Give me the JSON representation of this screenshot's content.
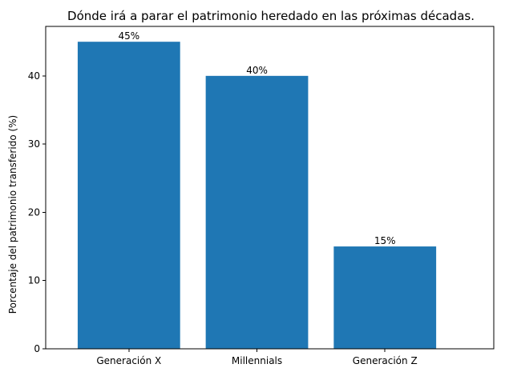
{
  "chart_data": {
    "type": "bar",
    "title": "Dónde irá a parar el patrimonio heredado en las próximas décadas.",
    "xlabel": "",
    "ylabel": "Porcentaje del patrimonio transferido (%)",
    "categories": [
      "Generación X",
      "Millennials",
      "Generación Z"
    ],
    "values": [
      45,
      40,
      15
    ],
    "data_labels": [
      "45%",
      "40%",
      "15%"
    ],
    "ylim": [
      0,
      47.25
    ],
    "yticks": [
      0,
      10,
      20,
      30,
      40
    ],
    "grid": false,
    "legend": "none",
    "bar_color": "#1f77b4"
  }
}
